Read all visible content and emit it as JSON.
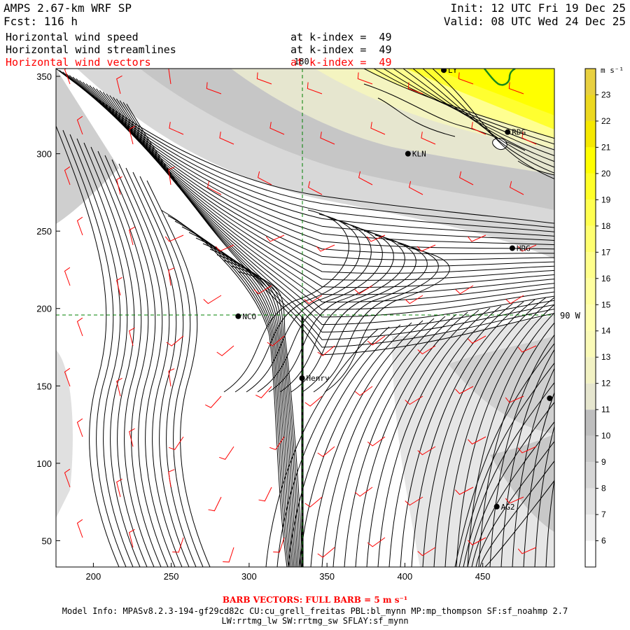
{
  "header": {
    "model": "AMPS 2.67-km WRF SP",
    "forecast": "Fcst: 116 h",
    "init": "Init: 12 UTC Fri 19 Dec 25",
    "valid": "Valid: 08 UTC Wed 24 Dec 25"
  },
  "fields": [
    {
      "label": "Horizontal wind speed",
      "level": "at k-index =  49",
      "color": "#000000"
    },
    {
      "label": "Horizontal wind streamlines",
      "level": "at k-index =  49",
      "color": "#000000"
    },
    {
      "label": "Horizontal wind vectors",
      "level": "at k-index =  49",
      "color": "#ff0000"
    }
  ],
  "axes": {
    "x_ticks": [
      "200",
      "250",
      "300",
      "350",
      "400",
      "450"
    ],
    "y_ticks": [
      "350",
      "300",
      "250",
      "200",
      "150",
      "100",
      "50"
    ],
    "x_range": [
      176,
      496
    ],
    "y_range": [
      33,
      355
    ]
  },
  "gridlines": {
    "meridian_label": "180",
    "latitude_label": "90 W"
  },
  "stations": [
    {
      "name": "LY",
      "x": 425,
      "y": 354
    },
    {
      "name": "RDG",
      "x": 466,
      "y": 314
    },
    {
      "name": "KLN",
      "x": 402,
      "y": 300
    },
    {
      "name": "HRG",
      "x": 469,
      "y": 239
    },
    {
      "name": "NCO",
      "x": 293,
      "y": 195
    },
    {
      "name": "Henry",
      "x": 334,
      "y": 155
    },
    {
      "name": "",
      "x": 493,
      "y": 142
    },
    {
      "name": "AG2",
      "x": 459,
      "y": 72
    }
  ],
  "colorbar": {
    "unit": "m s⁻¹",
    "levels": [
      "6",
      "7",
      "8",
      "9",
      "10",
      "11",
      "12",
      "13",
      "14",
      "15",
      "16",
      "17",
      "18",
      "19",
      "20",
      "21",
      "22",
      "23"
    ],
    "colors": [
      "#ffffff",
      "#eeeeee",
      "#e2e2e2",
      "#d6d6d6",
      "#cacaca",
      "#bebebe",
      "#e6e6cf",
      "#f2f2c4",
      "#fafab8",
      "#ffffb0",
      "#ffffa0",
      "#ffff8c",
      "#ffff70",
      "#ffff50",
      "#ffff28",
      "#ffff00",
      "#f5e800",
      "#ecd820",
      "#e8d040"
    ]
  },
  "barb_note": "BARB VECTORS:  FULL BARB = 5 m s⁻¹",
  "model_info": {
    "line1": "Model Info: MPASv8.2.3-194-gf29cd82c CU:cu_grell_freitas PBL:bl_mynn MP:mp_thompson SF:sf_noahmp 2.7",
    "line2": "LW:rrtmg_lw SW:rrtmg_sw SFLAY:sf_mynn"
  },
  "colors": {
    "streamline": "#000000",
    "barb": "#ff0000",
    "gridline": "#008000",
    "coast": "#000000",
    "contour_green": "#1a8a1a"
  }
}
